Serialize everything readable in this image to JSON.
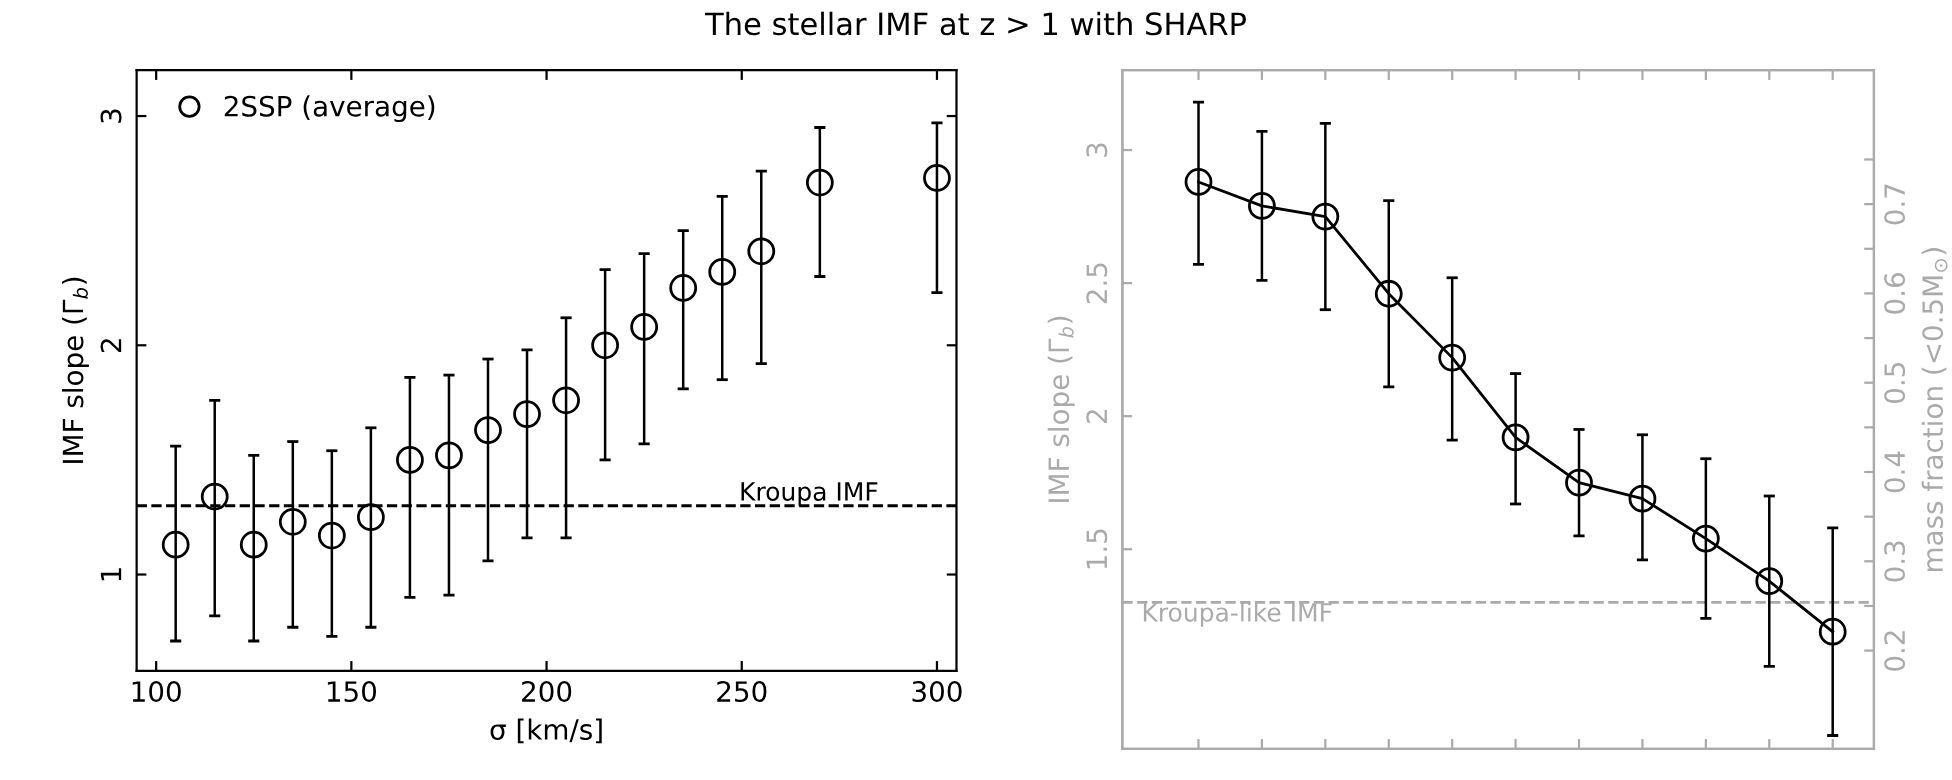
{
  "chart_data": [
    {
      "type": "scatter",
      "title": "The stellar IMF at z > 1 with SHARP",
      "xlabel": "σ [km/s]",
      "ylabel": "IMF slope (Γ$_{b}$)",
      "x": [
        105,
        115,
        125,
        135,
        145,
        155,
        165,
        175,
        185,
        195,
        205,
        215,
        225,
        235,
        245,
        255,
        270,
        300
      ],
      "series": [
        {
          "name": "2SSP (average)",
          "color": "#000000",
          "values": [
            1.13,
            1.34,
            1.13,
            1.23,
            1.17,
            1.25,
            1.5,
            1.52,
            1.63,
            1.7,
            1.76,
            2.0,
            2.08,
            2.25,
            2.32,
            2.41,
            2.71,
            2.73
          ],
          "errors": [
            [
              0.71,
              1.56
            ],
            [
              0.82,
              1.76
            ],
            [
              0.71,
              1.52
            ],
            [
              0.77,
              1.58
            ],
            [
              0.73,
              1.54
            ],
            [
              0.77,
              1.64
            ],
            [
              0.9,
              1.86
            ],
            [
              0.91,
              1.87
            ],
            [
              1.06,
              1.94
            ],
            [
              1.16,
              1.98
            ],
            [
              1.16,
              2.12
            ],
            [
              1.5,
              2.33
            ],
            [
              1.57,
              2.4
            ],
            [
              1.81,
              2.5
            ],
            [
              1.85,
              2.65
            ],
            [
              1.92,
              2.76
            ],
            [
              2.3,
              2.95
            ],
            [
              2.23,
              2.97
            ]
          ]
        }
      ],
      "marker": "circle",
      "legend": "top left",
      "xlim": [
        95,
        305
      ],
      "xticks": [
        100,
        150,
        200,
        250,
        300
      ],
      "ylim": [
        0.58,
        3.2
      ],
      "yticks": [
        1,
        2,
        3
      ],
      "ref_lines": [
        {
          "axis": "y",
          "value": 1.3,
          "label": "Kroupa IMF",
          "color": "#000000",
          "line_style": "dashed"
        }
      ],
      "grid": false
    },
    {
      "type": "line",
      "ylabel": "IMF slope (Γ$_{b}$)",
      "y2label": "mass fraction (<0.5M$_{⊙}$)",
      "categories": [
        null,
        null,
        null,
        null,
        null,
        null,
        null,
        null,
        null,
        null,
        null
      ],
      "series": [
        {
          "color": "#000000",
          "values": [
            2.88,
            2.79,
            2.75,
            2.46,
            2.22,
            1.92,
            1.75,
            1.69,
            1.54,
            1.38,
            1.19
          ],
          "errors": [
            [
              2.57,
              3.18
            ],
            [
              2.51,
              3.07
            ],
            [
              2.4,
              3.1
            ],
            [
              2.11,
              2.81
            ],
            [
              1.91,
              2.52
            ],
            [
              1.67,
              2.16
            ],
            [
              1.55,
              1.95
            ],
            [
              1.46,
              1.93
            ],
            [
              1.24,
              1.84
            ],
            0.32,
            0.39
          ]
        }
      ],
      "marker": "circle",
      "line_style": "solid",
      "tick_labels": "y",
      "ylim": [
        0.75,
        3.3
      ],
      "yticks": [
        1.5,
        2,
        2.5,
        3
      ],
      "y2lim": [
        0.09,
        0.85
      ],
      "y2ticks": [
        0.7,
        0.6,
        0.5,
        0.4,
        0.3,
        0.2,
        {
          "value": 0.75,
          "label": null
        },
        {
          "value": 0.65,
          "label": null
        },
        {
          "value": 0.55,
          "label": null
        },
        {
          "value": 0.45,
          "label": null
        },
        {
          "value": 0.35,
          "label": null
        },
        {
          "value": 0.25,
          "label": null
        }
      ],
      "ref_lines": [
        {
          "axis": "y",
          "value": 1.3,
          "label": "Kroupa-like IMF",
          "color": "#aaaaaa",
          "line_style": "dashed"
        }
      ],
      "grid": false
    }
  ]
}
